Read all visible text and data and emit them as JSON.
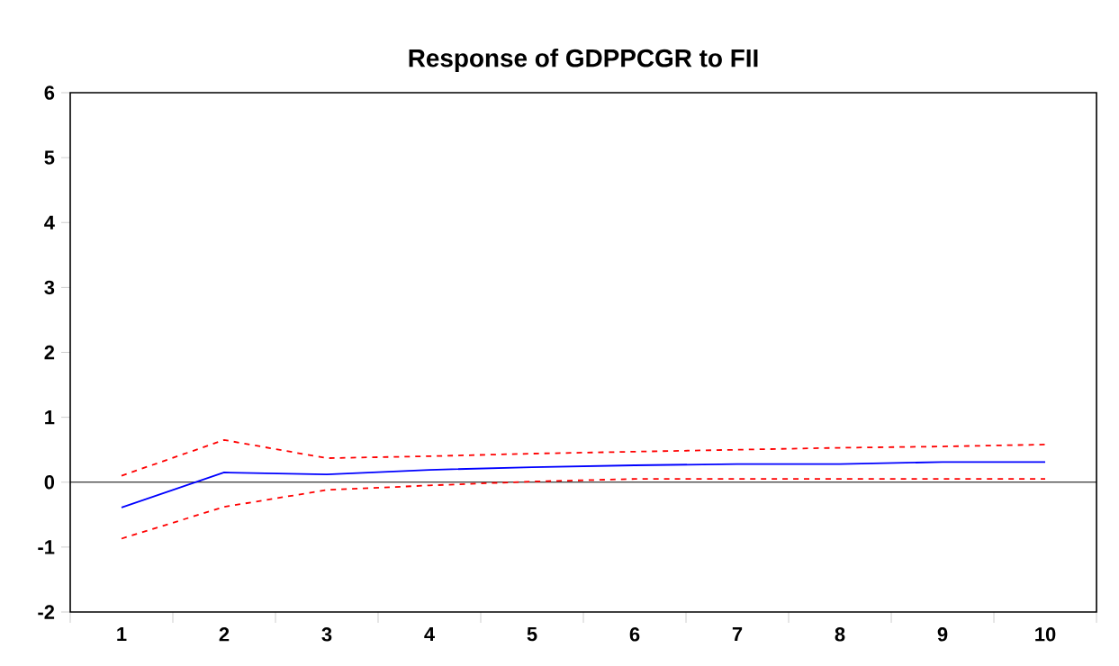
{
  "chart_data": {
    "type": "line",
    "title": "Response of GDPPCGR to FII",
    "categories": [
      "1",
      "2",
      "3",
      "4",
      "5",
      "6",
      "7",
      "8",
      "9",
      "10"
    ],
    "series": [
      {
        "color": "#0000ff",
        "line_style": "solid",
        "values": [
          -0.39,
          0.15,
          0.12,
          0.19,
          0.23,
          0.26,
          0.28,
          0.28,
          0.31,
          0.31
        ]
      },
      {
        "color": "#ff0000",
        "line_style": "dashed",
        "values": [
          0.1,
          0.65,
          0.37,
          0.4,
          0.44,
          0.47,
          0.5,
          0.53,
          0.55,
          0.58
        ]
      },
      {
        "color": "#ff0000",
        "line_style": "dashed",
        "values": [
          -0.87,
          -0.38,
          -0.12,
          -0.05,
          0.01,
          0.05,
          0.05,
          0.05,
          0.05,
          0.05
        ]
      }
    ],
    "ylim": [
      -2,
      6
    ],
    "yticks": [
      -2,
      -1,
      0,
      1,
      2,
      3,
      4,
      5,
      6
    ],
    "ref_lines": [
      {
        "axis": "y",
        "value": 0,
        "color": "#000000"
      }
    ],
    "grid": false,
    "marker": "none"
  }
}
